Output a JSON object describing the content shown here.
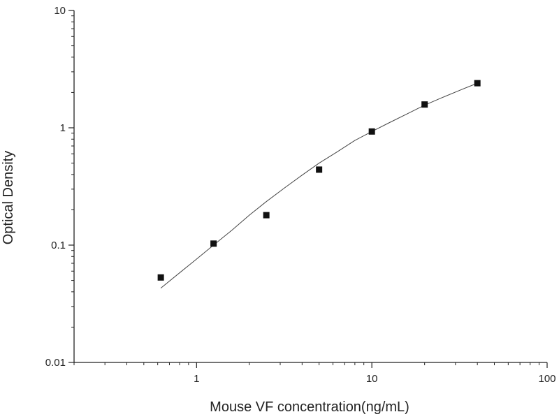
{
  "chart_data": {
    "type": "scatter",
    "title": "",
    "xlabel": "Mouse VF concentration(ng/mL)",
    "ylabel": "Optical Density",
    "xscale": "log",
    "yscale": "log",
    "xlim": [
      0.2,
      100
    ],
    "ylim": [
      0.01,
      10
    ],
    "x_ticks": [
      {
        "value": 1,
        "label": "1"
      },
      {
        "value": 10,
        "label": "10"
      },
      {
        "value": 100,
        "label": "100"
      }
    ],
    "y_ticks": [
      {
        "value": 0.01,
        "label": "0.01"
      },
      {
        "value": 0.1,
        "label": "0.1"
      },
      {
        "value": 1,
        "label": "1"
      },
      {
        "value": 10,
        "label": "10"
      }
    ],
    "grid": false,
    "legend": "none",
    "series": [
      {
        "x": [
          0.625,
          1.25,
          2.5,
          5,
          10,
          20,
          40
        ],
        "y": [
          0.053,
          0.103,
          0.18,
          0.44,
          0.93,
          1.58,
          2.4
        ]
      }
    ],
    "fit_curve": {
      "x": [
        0.625,
        0.8,
        1.0,
        1.25,
        1.6,
        2.0,
        2.5,
        3.2,
        4.0,
        5.0,
        6.3,
        8.0,
        10,
        12.5,
        16,
        20,
        25,
        32,
        40
      ],
      "y": [
        0.043,
        0.058,
        0.076,
        0.1,
        0.135,
        0.18,
        0.235,
        0.31,
        0.395,
        0.5,
        0.62,
        0.78,
        0.93,
        1.1,
        1.32,
        1.56,
        1.8,
        2.1,
        2.4
      ]
    },
    "colors": {
      "axis": "#222222",
      "marker": "#111111",
      "curve": "#444444"
    }
  }
}
